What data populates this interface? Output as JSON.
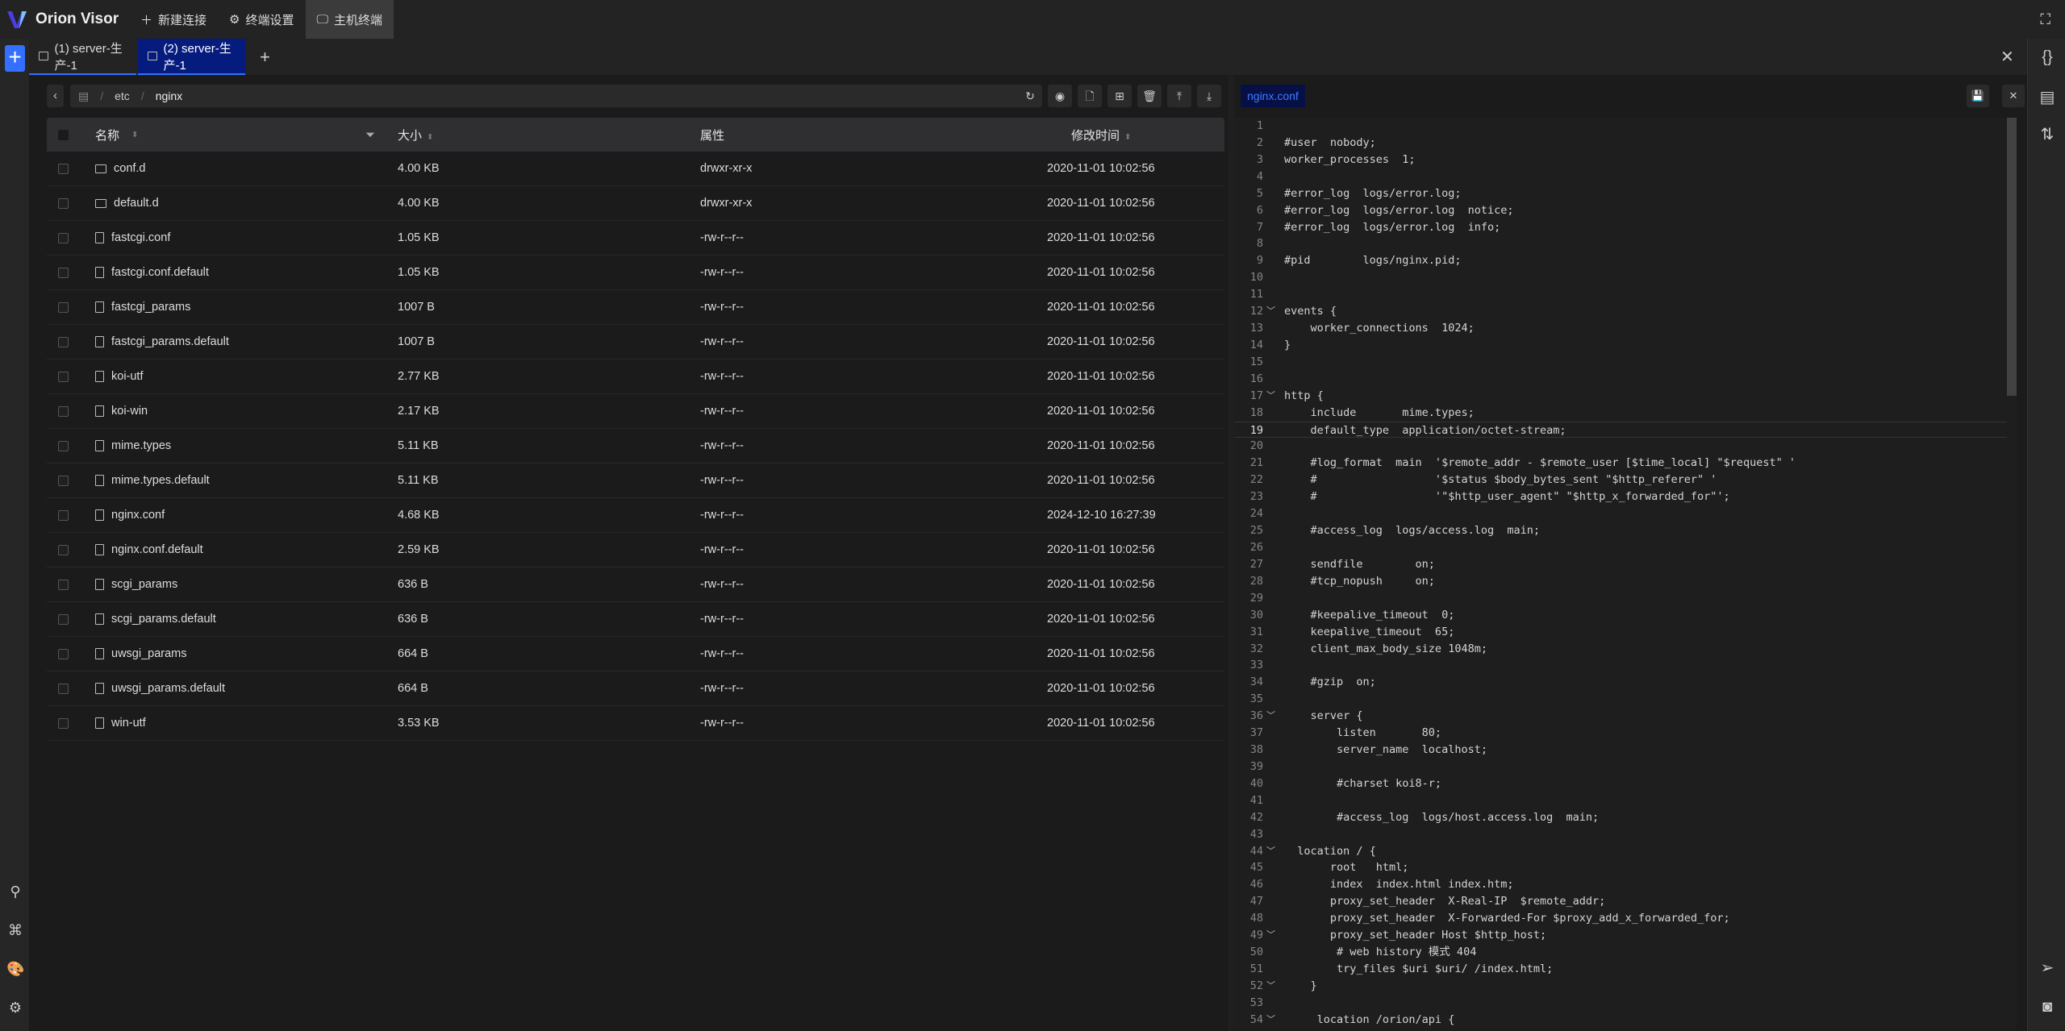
{
  "app": {
    "title": "Orion Visor"
  },
  "topbar": {
    "new_connection": "新建连接",
    "terminal_settings": "终端设置",
    "host_terminal": "主机终端"
  },
  "tabs": [
    {
      "label": "(1) server-生产-1"
    },
    {
      "label": "(2) server-生产-1",
      "active": true
    }
  ],
  "path": {
    "segments": [
      "etc",
      "nginx"
    ]
  },
  "table": {
    "headers": {
      "name": "名称",
      "size": "大小",
      "attr": "属性",
      "mtime": "修改时间"
    },
    "rows": [
      {
        "type": "folder",
        "name": "conf.d",
        "size": "4.00 KB",
        "attr": "drwxr-xr-x",
        "mtime": "2020-11-01 10:02:56"
      },
      {
        "type": "folder",
        "name": "default.d",
        "size": "4.00 KB",
        "attr": "drwxr-xr-x",
        "mtime": "2020-11-01 10:02:56"
      },
      {
        "type": "file",
        "name": "fastcgi.conf",
        "size": "1.05 KB",
        "attr": "-rw-r--r--",
        "mtime": "2020-11-01 10:02:56"
      },
      {
        "type": "file",
        "name": "fastcgi.conf.default",
        "size": "1.05 KB",
        "attr": "-rw-r--r--",
        "mtime": "2020-11-01 10:02:56"
      },
      {
        "type": "file",
        "name": "fastcgi_params",
        "size": "1007 B",
        "attr": "-rw-r--r--",
        "mtime": "2020-11-01 10:02:56"
      },
      {
        "type": "file",
        "name": "fastcgi_params.default",
        "size": "1007 B",
        "attr": "-rw-r--r--",
        "mtime": "2020-11-01 10:02:56"
      },
      {
        "type": "file",
        "name": "koi-utf",
        "size": "2.77 KB",
        "attr": "-rw-r--r--",
        "mtime": "2020-11-01 10:02:56"
      },
      {
        "type": "file",
        "name": "koi-win",
        "size": "2.17 KB",
        "attr": "-rw-r--r--",
        "mtime": "2020-11-01 10:02:56"
      },
      {
        "type": "file",
        "name": "mime.types",
        "size": "5.11 KB",
        "attr": "-rw-r--r--",
        "mtime": "2020-11-01 10:02:56"
      },
      {
        "type": "file",
        "name": "mime.types.default",
        "size": "5.11 KB",
        "attr": "-rw-r--r--",
        "mtime": "2020-11-01 10:02:56"
      },
      {
        "type": "file",
        "name": "nginx.conf",
        "size": "4.68 KB",
        "attr": "-rw-r--r--",
        "mtime": "2024-12-10 16:27:39"
      },
      {
        "type": "file",
        "name": "nginx.conf.default",
        "size": "2.59 KB",
        "attr": "-rw-r--r--",
        "mtime": "2020-11-01 10:02:56"
      },
      {
        "type": "file",
        "name": "scgi_params",
        "size": "636 B",
        "attr": "-rw-r--r--",
        "mtime": "2020-11-01 10:02:56"
      },
      {
        "type": "file",
        "name": "scgi_params.default",
        "size": "636 B",
        "attr": "-rw-r--r--",
        "mtime": "2020-11-01 10:02:56"
      },
      {
        "type": "file",
        "name": "uwsgi_params",
        "size": "664 B",
        "attr": "-rw-r--r--",
        "mtime": "2020-11-01 10:02:56"
      },
      {
        "type": "file",
        "name": "uwsgi_params.default",
        "size": "664 B",
        "attr": "-rw-r--r--",
        "mtime": "2020-11-01 10:02:56"
      },
      {
        "type": "file",
        "name": "win-utf",
        "size": "3.53 KB",
        "attr": "-rw-r--r--",
        "mtime": "2020-11-01 10:02:56"
      }
    ]
  },
  "editor": {
    "tab": "nginx.conf",
    "current_line": 19,
    "fold_lines": [
      12,
      17,
      36,
      44,
      49,
      52,
      54
    ],
    "lines": [
      "",
      "#user  nobody;",
      "worker_processes  1;",
      "",
      "#error_log  logs/error.log;",
      "#error_log  logs/error.log  notice;",
      "#error_log  logs/error.log  info;",
      "",
      "#pid        logs/nginx.pid;",
      "",
      "",
      "events {",
      "    worker_connections  1024;",
      "}",
      "",
      "",
      "http {",
      "    include       mime.types;",
      "    default_type  application/octet-stream;",
      "",
      "    #log_format  main  '$remote_addr - $remote_user [$time_local] \"$request\" '",
      "    #                  '$status $body_bytes_sent \"$http_referer\" '",
      "    #                  '\"$http_user_agent\" \"$http_x_forwarded_for\"';",
      "",
      "    #access_log  logs/access.log  main;",
      "",
      "    sendfile        on;",
      "    #tcp_nopush     on;",
      "",
      "    #keepalive_timeout  0;",
      "    keepalive_timeout  65;",
      "    client_max_body_size 1048m;",
      "",
      "    #gzip  on;",
      "",
      "    server {",
      "        listen       80;",
      "        server_name  localhost;",
      "",
      "        #charset koi8-r;",
      "",
      "        #access_log  logs/host.access.log  main;",
      "",
      "  location / {",
      "       root   html;",
      "       index  index.html index.htm;",
      "       proxy_set_header  X-Real-IP  $remote_addr;",
      "       proxy_set_header  X-Forwarded-For $proxy_add_x_forwarded_for;",
      "       proxy_set_header Host $http_host;",
      "        # web history 模式 404",
      "        try_files $uri $uri/ /index.html;",
      "    }",
      "",
      "     location /orion/api {"
    ]
  },
  "colors": {
    "accent": "#3370ff",
    "active_tab": "#061b7e"
  }
}
